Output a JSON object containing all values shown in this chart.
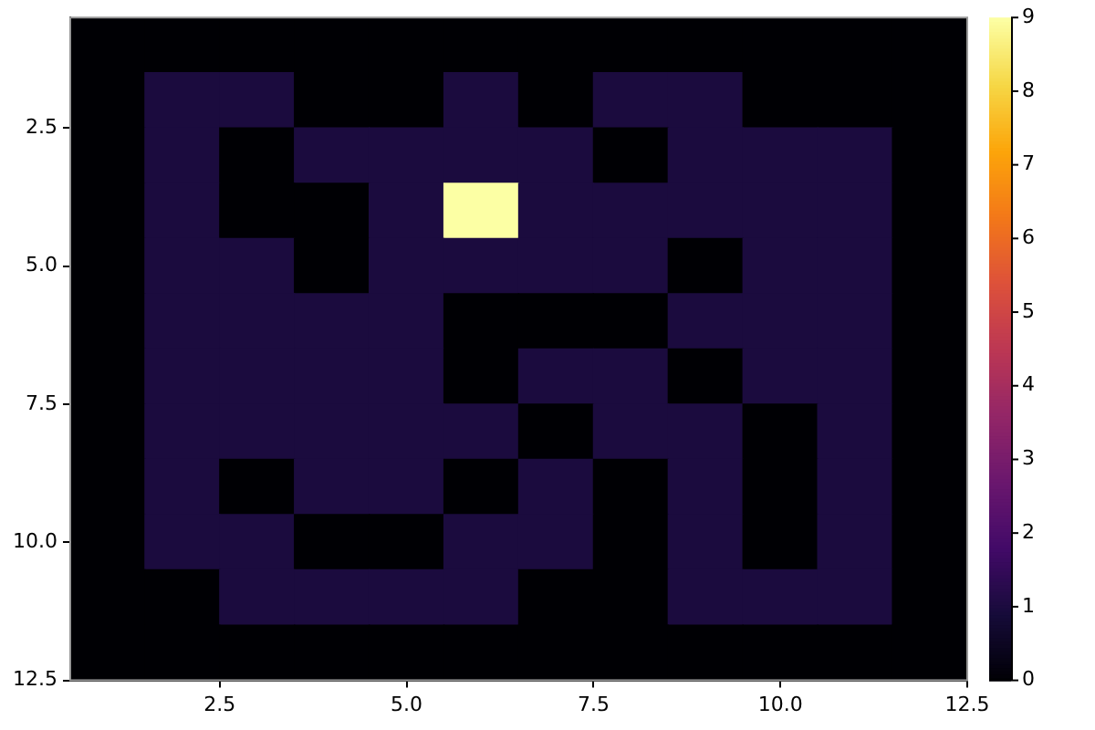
{
  "chart_data": {
    "type": "heatmap",
    "x": [
      1,
      2,
      3,
      4,
      5,
      6,
      7,
      8,
      9,
      10,
      11,
      12
    ],
    "cells": [
      [
        0,
        0,
        0,
        0,
        0,
        0,
        0,
        0,
        0,
        0,
        0,
        0
      ],
      [
        0,
        1,
        1,
        0,
        0,
        1,
        0,
        1,
        1,
        0,
        0,
        0
      ],
      [
        0,
        1,
        0,
        1,
        1,
        1,
        1,
        0,
        1,
        1,
        1,
        0
      ],
      [
        0,
        1,
        0,
        0,
        1,
        9,
        1,
        1,
        1,
        1,
        1,
        0
      ],
      [
        0,
        1,
        1,
        0,
        1,
        1,
        1,
        1,
        0,
        1,
        1,
        0
      ],
      [
        0,
        1,
        1,
        1,
        1,
        0,
        0,
        0,
        1,
        1,
        1,
        0
      ],
      [
        0,
        1,
        1,
        1,
        1,
        0,
        1,
        1,
        0,
        1,
        1,
        0
      ],
      [
        0,
        1,
        1,
        1,
        1,
        1,
        0,
        1,
        1,
        0,
        1,
        0
      ],
      [
        0,
        1,
        0,
        1,
        1,
        0,
        1,
        0,
        1,
        0,
        1,
        0
      ],
      [
        0,
        1,
        1,
        0,
        0,
        1,
        1,
        0,
        1,
        0,
        1,
        0
      ],
      [
        0,
        0,
        1,
        1,
        1,
        1,
        0,
        0,
        1,
        1,
        1,
        0
      ],
      [
        0,
        0,
        0,
        0,
        0,
        0,
        0,
        0,
        0,
        0,
        0,
        0
      ]
    ],
    "xlim": [
      0.5,
      12.5
    ],
    "ylim": [
      12.5,
      0.5
    ],
    "xticks": [
      2.5,
      {
        "value": 5,
        "label": "5.0"
      },
      7.5,
      {
        "value": 10,
        "label": "10.0"
      },
      12.5
    ],
    "yticks": [
      2.5,
      {
        "value": 5,
        "label": "5.0"
      },
      7.5,
      {
        "value": 10,
        "label": "10.0"
      },
      12.5
    ],
    "clim": [
      0,
      9
    ],
    "cticks": [
      0,
      1,
      2,
      3,
      4,
      5,
      6,
      7,
      8,
      9
    ],
    "legend": false
  }
}
